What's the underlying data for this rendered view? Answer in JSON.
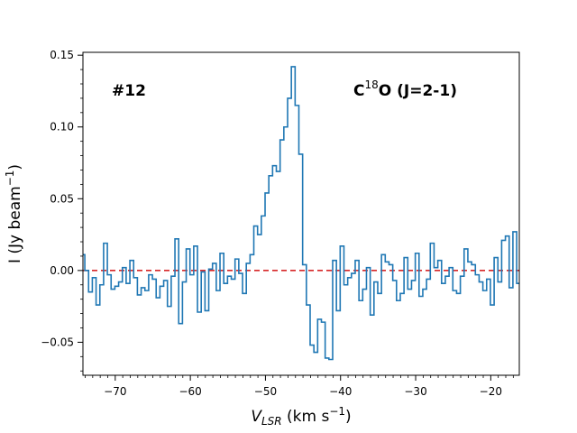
{
  "chart_data": {
    "type": "line",
    "style": "step",
    "title": "",
    "xlabel_main": "V",
    "xlabel_sub": "LSR",
    "xlabel_rest": " (km s",
    "xlabel_sup": "−1",
    "xlabel_close": ")",
    "ylabel_main": "I (Jy beam",
    "ylabel_sup": "−1",
    "ylabel_close": ")",
    "xlim": [
      -74.3,
      -16.2
    ],
    "ylim": [
      -0.073,
      0.152
    ],
    "xticks": [
      -70,
      -60,
      -50,
      -40,
      -30,
      -20
    ],
    "xtick_labels": [
      "−70",
      "−60",
      "−50",
      "−40",
      "−30",
      "−20"
    ],
    "yticks": [
      -0.05,
      0.0,
      0.05,
      0.1,
      0.15
    ],
    "ytick_labels": [
      "−0.05",
      "0.00",
      "0.05",
      "0.10",
      "0.15"
    ],
    "annotations": {
      "left": "#12",
      "right_pre": "C",
      "right_sup": "18",
      "right_post": "O (J=2-1)"
    },
    "colors": {
      "series": "#1f77b4",
      "baseline": "#d62728"
    },
    "series": [
      {
        "name": "spectrum",
        "x": [
          -74.3,
          -73.8,
          -73.3,
          -72.8,
          -72.3,
          -71.8,
          -71.3,
          -70.8,
          -70.3,
          -69.8,
          -69.3,
          -68.8,
          -68.3,
          -67.8,
          -67.3,
          -66.8,
          -66.3,
          -65.8,
          -65.3,
          -64.8,
          -64.3,
          -63.8,
          -63.3,
          -62.8,
          -62.3,
          -61.8,
          -61.3,
          -60.8,
          -60.3,
          -59.8,
          -59.3,
          -58.8,
          -58.3,
          -57.8,
          -57.3,
          -56.8,
          -56.3,
          -55.8,
          -55.3,
          -54.8,
          -54.3,
          -53.8,
          -53.3,
          -52.8,
          -52.3,
          -51.8,
          -51.3,
          -50.8,
          -50.3,
          -49.8,
          -49.3,
          -48.8,
          -48.3,
          -47.8,
          -47.3,
          -46.8,
          -46.3,
          -45.8,
          -45.3,
          -44.8,
          -44.3,
          -43.8,
          -43.3,
          -42.8,
          -42.3,
          -41.8,
          -41.3,
          -40.8,
          -40.3,
          -39.8,
          -39.3,
          -38.8,
          -38.3,
          -37.8,
          -37.3,
          -36.8,
          -36.3,
          -35.8,
          -35.3,
          -34.8,
          -34.3,
          -33.8,
          -33.3,
          -32.8,
          -32.3,
          -31.8,
          -31.3,
          -30.8,
          -30.3,
          -29.8,
          -29.3,
          -28.8,
          -28.3,
          -27.8,
          -27.3,
          -26.8,
          -26.3,
          -25.8,
          -25.3,
          -24.8,
          -24.3,
          -23.8,
          -23.3,
          -22.8,
          -22.3,
          -21.8,
          -21.3,
          -20.8,
          -20.3,
          -19.8,
          -19.3,
          -18.8,
          -18.3,
          -17.8,
          -17.3,
          -16.8,
          -16.3
        ],
        "y": [
          0.011,
          0.0,
          -0.015,
          -0.005,
          -0.024,
          -0.01,
          0.019,
          -0.003,
          -0.013,
          -0.011,
          -0.008,
          0.002,
          -0.009,
          0.007,
          -0.005,
          -0.017,
          -0.012,
          -0.014,
          -0.003,
          -0.006,
          -0.019,
          -0.011,
          -0.007,
          -0.025,
          -0.004,
          0.022,
          -0.037,
          -0.008,
          0.015,
          -0.003,
          0.017,
          -0.029,
          -0.001,
          -0.028,
          0.001,
          0.005,
          -0.014,
          0.012,
          -0.009,
          -0.004,
          -0.006,
          0.008,
          -0.002,
          -0.016,
          0.005,
          0.011,
          0.031,
          0.025,
          0.038,
          0.054,
          0.066,
          0.073,
          0.069,
          0.091,
          0.1,
          0.12,
          0.142,
          0.115,
          0.081,
          0.004,
          -0.024,
          -0.052,
          -0.057,
          -0.034,
          -0.036,
          -0.061,
          -0.062,
          0.007,
          -0.028,
          0.017,
          -0.01,
          -0.005,
          -0.002,
          0.007,
          -0.021,
          -0.013,
          0.002,
          -0.031,
          -0.008,
          -0.016,
          0.011,
          0.006,
          0.004,
          -0.007,
          -0.021,
          -0.016,
          0.009,
          -0.013,
          -0.007,
          0.012,
          -0.018,
          -0.013,
          -0.006,
          0.019,
          0.002,
          0.007,
          -0.009,
          -0.004,
          0.002,
          -0.014,
          -0.016,
          -0.004,
          0.015,
          0.006,
          0.004,
          -0.003,
          -0.008,
          -0.014,
          -0.006,
          -0.024,
          0.009,
          -0.008,
          0.021,
          0.024,
          -0.012,
          0.027,
          -0.009
        ]
      }
    ]
  }
}
